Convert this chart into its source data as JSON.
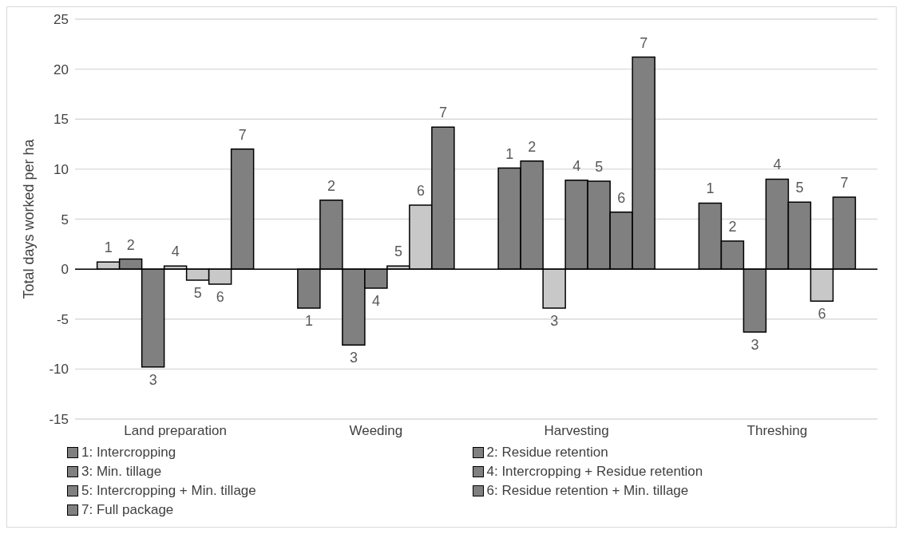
{
  "chart_data": {
    "type": "bar",
    "ylabel": "Total days worked per ha",
    "categories": [
      "Land preparation",
      "Weeding",
      "Harvesting",
      "Threshing"
    ],
    "series": [
      {
        "name": "1: Intercropping",
        "color": "#808080",
        "values": [
          0.7,
          -3.9,
          10.1,
          6.6
        ],
        "colors": [
          "#c8c8c8",
          "#808080",
          "#808080",
          "#808080"
        ]
      },
      {
        "name": "2: Residue retention",
        "color": "#808080",
        "values": [
          1.0,
          6.9,
          10.8,
          2.8
        ],
        "colors": [
          "#808080",
          "#808080",
          "#808080",
          "#808080"
        ]
      },
      {
        "name": "3: Min. tillage",
        "color": "#808080",
        "values": [
          -9.8,
          -7.6,
          -3.9,
          -6.3
        ],
        "colors": [
          "#808080",
          "#808080",
          "#c8c8c8",
          "#808080"
        ]
      },
      {
        "name": "4: Intercropping + Residue retention",
        "color": "#808080",
        "values": [
          0.3,
          -1.9,
          8.9,
          9.0
        ],
        "colors": [
          "#c8c8c8",
          "#808080",
          "#808080",
          "#808080"
        ]
      },
      {
        "name": "5: Intercropping + Min. tillage",
        "color": "#808080",
        "values": [
          -1.1,
          0.3,
          8.8,
          6.7
        ],
        "colors": [
          "#c8c8c8",
          "#c8c8c8",
          "#808080",
          "#808080"
        ]
      },
      {
        "name": "6: Residue retention + Min. tillage",
        "color": "#808080",
        "values": [
          -1.5,
          6.4,
          5.7,
          -3.2
        ],
        "colors": [
          "#c8c8c8",
          "#c8c8c8",
          "#808080",
          "#c8c8c8"
        ]
      },
      {
        "name": "7: Full package",
        "color": "#808080",
        "values": [
          12.0,
          14.2,
          21.2,
          7.2
        ],
        "colors": [
          "#808080",
          "#808080",
          "#808080",
          "#808080"
        ]
      }
    ],
    "annotations": [
      "1",
      "2",
      "3",
      "4",
      "5",
      "6",
      "7",
      "1",
      "2",
      "3",
      "4",
      "5",
      "6",
      "7",
      "1",
      "2",
      "3",
      "4",
      "5",
      "6",
      "7",
      "1",
      "2",
      "3",
      "4",
      "5",
      "6",
      "7"
    ],
    "ylim": [
      -15,
      25
    ],
    "yticks": [
      -15,
      -10,
      -5,
      0,
      5,
      10,
      15,
      20,
      25
    ],
    "grid": "y",
    "legend": "bottom"
  }
}
